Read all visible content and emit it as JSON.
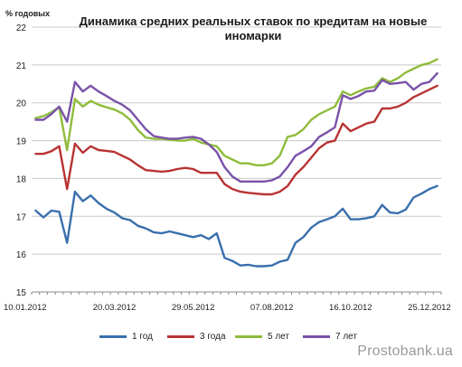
{
  "header": {
    "title_line1": "Динамика средних реальных ставок по кредитам на новые",
    "title_line2": "иномарки",
    "ylabel": "% годовых"
  },
  "watermark": "Prostobank.ua",
  "colors": {
    "1 год": "#3a6fad",
    "3 года": "#b83333",
    "5 лет": "#8fbc3a",
    "7 лет": "#7a52a8",
    "grid": "#c8c8c8"
  },
  "chart_data": {
    "type": "line",
    "title": "Динамика средних реальных ставок по кредитам на новые иномарки",
    "ylabel": "% годовых",
    "xlabel": "",
    "ylim": [
      15,
      22
    ],
    "yticks": [
      15,
      16,
      17,
      18,
      19,
      20,
      21,
      22
    ],
    "grid": true,
    "legend_position": "bottom",
    "x": [
      "10.01.2012",
      "",
      "",
      "",
      "",
      "",
      "",
      "",
      "",
      "",
      "20.03.2012",
      "",
      "",
      "",
      "",
      "",
      "",
      "",
      "",
      "",
      "29.05.2012",
      "",
      "",
      "",
      "",
      "",
      "",
      "",
      "",
      "",
      "07.08.2012",
      "",
      "",
      "",
      "",
      "",
      "",
      "",
      "",
      "",
      "16.10.2012",
      "",
      "",
      "",
      "",
      "",
      "",
      "",
      "",
      "",
      "25.12.2012",
      ""
    ],
    "xtick_labels": [
      "10.01.2012",
      "20.03.2012",
      "29.05.2012",
      "07.08.2012",
      "16.10.2012",
      "25.12.2012"
    ],
    "series": [
      {
        "name": "1 год",
        "values": [
          17.15,
          16.97,
          17.15,
          17.12,
          16.3,
          17.65,
          17.4,
          17.55,
          17.35,
          17.2,
          17.1,
          16.95,
          16.9,
          16.75,
          16.68,
          16.58,
          16.55,
          16.6,
          16.55,
          16.5,
          16.45,
          16.5,
          16.4,
          16.55,
          15.9,
          15.82,
          15.7,
          15.72,
          15.68,
          15.68,
          15.7,
          15.8,
          15.85,
          16.3,
          16.45,
          16.7,
          16.85,
          16.92,
          17.0,
          17.2,
          16.92,
          16.92,
          16.95,
          17.0,
          17.3,
          17.1,
          17.08,
          17.18,
          17.5,
          17.6,
          17.72,
          17.8
        ]
      },
      {
        "name": "3 года",
        "values": [
          18.65,
          18.65,
          18.72,
          18.85,
          17.72,
          18.92,
          18.68,
          18.85,
          18.75,
          18.73,
          18.7,
          18.6,
          18.5,
          18.35,
          18.22,
          18.2,
          18.18,
          18.2,
          18.25,
          18.28,
          18.25,
          18.15,
          18.15,
          18.15,
          17.85,
          17.72,
          17.65,
          17.62,
          17.6,
          17.58,
          17.58,
          17.65,
          17.8,
          18.1,
          18.3,
          18.55,
          18.8,
          18.95,
          19.0,
          19.45,
          19.25,
          19.35,
          19.45,
          19.5,
          19.85,
          19.85,
          19.9,
          20.0,
          20.15,
          20.25,
          20.35,
          20.45
        ]
      },
      {
        "name": "5 лет",
        "values": [
          19.6,
          19.65,
          19.75,
          19.88,
          18.75,
          20.1,
          19.9,
          20.05,
          19.95,
          19.88,
          19.82,
          19.72,
          19.55,
          19.28,
          19.08,
          19.05,
          19.05,
          19.02,
          19.0,
          19.0,
          19.05,
          18.95,
          18.9,
          18.85,
          18.6,
          18.5,
          18.4,
          18.4,
          18.35,
          18.35,
          18.4,
          18.6,
          19.1,
          19.15,
          19.3,
          19.55,
          19.7,
          19.8,
          19.9,
          20.3,
          20.2,
          20.3,
          20.38,
          20.42,
          20.65,
          20.55,
          20.65,
          20.8,
          20.9,
          21.0,
          21.05,
          21.15
        ]
      },
      {
        "name": "7 лет",
        "values": [
          19.55,
          19.55,
          19.7,
          19.9,
          19.5,
          20.55,
          20.3,
          20.45,
          20.3,
          20.18,
          20.05,
          19.95,
          19.8,
          19.55,
          19.3,
          19.12,
          19.08,
          19.05,
          19.05,
          19.08,
          19.1,
          19.05,
          18.9,
          18.7,
          18.3,
          18.05,
          17.92,
          17.92,
          17.92,
          17.92,
          17.95,
          18.05,
          18.3,
          18.6,
          18.72,
          18.85,
          19.1,
          19.22,
          19.35,
          20.2,
          20.1,
          20.18,
          20.3,
          20.32,
          20.6,
          20.5,
          20.52,
          20.55,
          20.35,
          20.5,
          20.55,
          20.78
        ]
      }
    ]
  }
}
